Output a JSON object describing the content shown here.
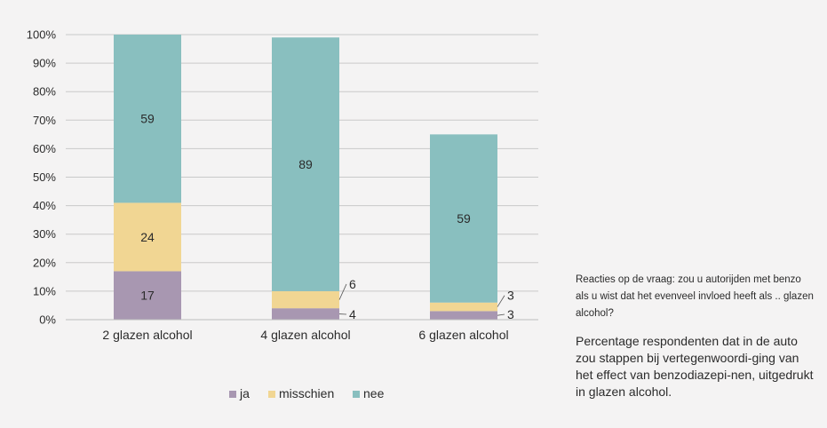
{
  "chart_data": {
    "type": "bar",
    "stacked": true,
    "categories": [
      "2 glazen alcohol",
      "4 glazen alcohol",
      "6 glazen alcohol"
    ],
    "series": [
      {
        "name": "ja",
        "color": "#a897b1",
        "values": [
          17,
          4,
          3
        ]
      },
      {
        "name": "misschien",
        "color": "#f1d693",
        "values": [
          24,
          6,
          3
        ]
      },
      {
        "name": "nee",
        "color": "#89bfbf",
        "values": [
          59,
          89,
          59
        ]
      }
    ],
    "y_tick_labels": [
      "0%",
      "10%",
      "20%",
      "30%",
      "40%",
      "50%",
      "60%",
      "70%",
      "80%",
      "90%",
      "100%"
    ],
    "ylim": [
      0,
      100
    ],
    "grid": true,
    "legend_position": "bottom"
  },
  "caption": {
    "question": "Reacties op de vraag: zou u autorijden met benzo als u wist dat het evenveel invloed heeft als .. glazen alcohol?",
    "description": "Percentage respondenten dat in de auto zou stappen bij vertegenwoordi-ging van het effect van benzodiazepi-nen, uitgedrukt in glazen alcohol."
  }
}
